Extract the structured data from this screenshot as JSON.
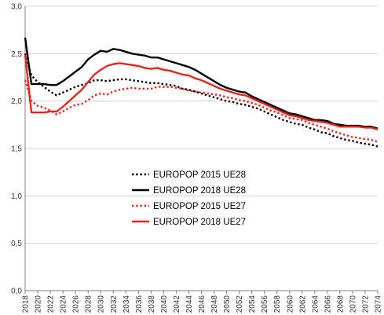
{
  "chart_data": {
    "type": "line",
    "title": "",
    "xlabel": "",
    "ylabel": "",
    "ylim": [
      0,
      3.0
    ],
    "xlim": [
      2018,
      2074
    ],
    "grid": {
      "x": false,
      "y": true
    },
    "legend_position": "center-left",
    "y_ticks": [
      "0,0",
      "0,5",
      "1,0",
      "1,5",
      "2,0",
      "2,5",
      "3,0"
    ],
    "x_ticks": [
      "2018",
      "2020",
      "2022",
      "2024",
      "2026",
      "2028",
      "2030",
      "2032",
      "2034",
      "2036",
      "2038",
      "2040",
      "2042",
      "2044",
      "2046",
      "2048",
      "2050",
      "2052",
      "2054",
      "2056",
      "2058",
      "2060",
      "2062",
      "2064",
      "2066",
      "2068",
      "2070",
      "2072",
      "2074"
    ],
    "series": [
      {
        "name": "EUROPOP 2015 UE28",
        "color": "#000000",
        "style": "dotted",
        "points": [
          [
            2018,
            2.5
          ],
          [
            2019,
            2.27
          ],
          [
            2020,
            2.2
          ],
          [
            2021,
            2.15
          ],
          [
            2022,
            2.1
          ],
          [
            2023,
            2.06
          ],
          [
            2024,
            2.09
          ],
          [
            2025,
            2.12
          ],
          [
            2026,
            2.15
          ],
          [
            2027,
            2.17
          ],
          [
            2028,
            2.19
          ],
          [
            2029,
            2.22
          ],
          [
            2030,
            2.22
          ],
          [
            2031,
            2.21
          ],
          [
            2032,
            2.22
          ],
          [
            2033,
            2.23
          ],
          [
            2034,
            2.23
          ],
          [
            2035,
            2.22
          ],
          [
            2036,
            2.21
          ],
          [
            2037,
            2.2
          ],
          [
            2038,
            2.19
          ],
          [
            2039,
            2.19
          ],
          [
            2040,
            2.18
          ],
          [
            2041,
            2.17
          ],
          [
            2042,
            2.16
          ],
          [
            2043,
            2.13
          ],
          [
            2044,
            2.12
          ],
          [
            2045,
            2.1
          ],
          [
            2046,
            2.08
          ],
          [
            2047,
            2.06
          ],
          [
            2048,
            2.04
          ],
          [
            2049,
            2.02
          ],
          [
            2050,
            2.0
          ],
          [
            2051,
            1.99
          ],
          [
            2052,
            1.97
          ],
          [
            2053,
            1.96
          ],
          [
            2054,
            1.94
          ],
          [
            2055,
            1.92
          ],
          [
            2056,
            1.89
          ],
          [
            2057,
            1.86
          ],
          [
            2058,
            1.83
          ],
          [
            2059,
            1.8
          ],
          [
            2060,
            1.78
          ],
          [
            2061,
            1.76
          ],
          [
            2062,
            1.75
          ],
          [
            2063,
            1.72
          ],
          [
            2064,
            1.7
          ],
          [
            2065,
            1.67
          ],
          [
            2066,
            1.66
          ],
          [
            2067,
            1.63
          ],
          [
            2068,
            1.61
          ],
          [
            2069,
            1.59
          ],
          [
            2070,
            1.58
          ],
          [
            2071,
            1.56
          ],
          [
            2072,
            1.55
          ],
          [
            2073,
            1.54
          ],
          [
            2074,
            1.52
          ]
        ]
      },
      {
        "name": "EUROPOP 2018 UE28",
        "color": "#000000",
        "style": "solid",
        "points": [
          [
            2018,
            2.67
          ],
          [
            2019,
            2.18
          ],
          [
            2020,
            2.18
          ],
          [
            2021,
            2.18
          ],
          [
            2022,
            2.17
          ],
          [
            2023,
            2.17
          ],
          [
            2024,
            2.21
          ],
          [
            2025,
            2.26
          ],
          [
            2026,
            2.31
          ],
          [
            2027,
            2.36
          ],
          [
            2028,
            2.44
          ],
          [
            2029,
            2.49
          ],
          [
            2030,
            2.53
          ],
          [
            2031,
            2.52
          ],
          [
            2032,
            2.55
          ],
          [
            2033,
            2.54
          ],
          [
            2034,
            2.52
          ],
          [
            2035,
            2.5
          ],
          [
            2036,
            2.49
          ],
          [
            2037,
            2.48
          ],
          [
            2038,
            2.46
          ],
          [
            2039,
            2.46
          ],
          [
            2040,
            2.44
          ],
          [
            2041,
            2.42
          ],
          [
            2042,
            2.4
          ],
          [
            2043,
            2.38
          ],
          [
            2044,
            2.36
          ],
          [
            2045,
            2.33
          ],
          [
            2046,
            2.29
          ],
          [
            2047,
            2.25
          ],
          [
            2048,
            2.21
          ],
          [
            2049,
            2.17
          ],
          [
            2050,
            2.14
          ],
          [
            2051,
            2.12
          ],
          [
            2052,
            2.1
          ],
          [
            2053,
            2.09
          ],
          [
            2054,
            2.05
          ],
          [
            2055,
            2.02
          ],
          [
            2056,
            1.99
          ],
          [
            2057,
            1.96
          ],
          [
            2058,
            1.93
          ],
          [
            2059,
            1.9
          ],
          [
            2060,
            1.87
          ],
          [
            2061,
            1.86
          ],
          [
            2062,
            1.84
          ],
          [
            2063,
            1.82
          ],
          [
            2064,
            1.8
          ],
          [
            2065,
            1.8
          ],
          [
            2066,
            1.79
          ],
          [
            2067,
            1.76
          ],
          [
            2068,
            1.75
          ],
          [
            2069,
            1.74
          ],
          [
            2070,
            1.74
          ],
          [
            2071,
            1.74
          ],
          [
            2072,
            1.73
          ],
          [
            2073,
            1.73
          ],
          [
            2074,
            1.71
          ]
        ]
      },
      {
        "name": "EUROPOP 2015 UE27",
        "color": "#e8231b",
        "style": "dotted",
        "points": [
          [
            2018,
            2.22
          ],
          [
            2019,
            2.0
          ],
          [
            2020,
            1.95
          ],
          [
            2021,
            1.93
          ],
          [
            2022,
            1.9
          ],
          [
            2023,
            1.86
          ],
          [
            2024,
            1.89
          ],
          [
            2025,
            1.93
          ],
          [
            2026,
            1.96
          ],
          [
            2027,
            1.97
          ],
          [
            2028,
            2.01
          ],
          [
            2029,
            2.06
          ],
          [
            2030,
            2.08
          ],
          [
            2031,
            2.07
          ],
          [
            2032,
            2.1
          ],
          [
            2033,
            2.12
          ],
          [
            2034,
            2.13
          ],
          [
            2035,
            2.14
          ],
          [
            2036,
            2.13
          ],
          [
            2037,
            2.13
          ],
          [
            2038,
            2.13
          ],
          [
            2039,
            2.15
          ],
          [
            2040,
            2.15
          ],
          [
            2041,
            2.15
          ],
          [
            2042,
            2.14
          ],
          [
            2043,
            2.13
          ],
          [
            2044,
            2.11
          ],
          [
            2045,
            2.1
          ],
          [
            2046,
            2.09
          ],
          [
            2047,
            2.08
          ],
          [
            2048,
            2.07
          ],
          [
            2049,
            2.06
          ],
          [
            2050,
            2.04
          ],
          [
            2051,
            2.03
          ],
          [
            2052,
            2.01
          ],
          [
            2053,
            2.0
          ],
          [
            2054,
            1.98
          ],
          [
            2055,
            1.96
          ],
          [
            2056,
            1.93
          ],
          [
            2057,
            1.9
          ],
          [
            2058,
            1.88
          ],
          [
            2059,
            1.85
          ],
          [
            2060,
            1.82
          ],
          [
            2061,
            1.81
          ],
          [
            2062,
            1.8
          ],
          [
            2063,
            1.77
          ],
          [
            2064,
            1.75
          ],
          [
            2065,
            1.73
          ],
          [
            2066,
            1.71
          ],
          [
            2067,
            1.68
          ],
          [
            2068,
            1.66
          ],
          [
            2069,
            1.64
          ],
          [
            2070,
            1.62
          ],
          [
            2071,
            1.61
          ],
          [
            2072,
            1.6
          ],
          [
            2073,
            1.59
          ],
          [
            2074,
            1.57
          ]
        ]
      },
      {
        "name": "EUROPOP 2018 UE27",
        "color": "#e8231b",
        "style": "solid",
        "points": [
          [
            2018,
            2.49
          ],
          [
            2019,
            1.88
          ],
          [
            2020,
            1.88
          ],
          [
            2021,
            1.88
          ],
          [
            2022,
            1.89
          ],
          [
            2023,
            1.89
          ],
          [
            2024,
            1.94
          ],
          [
            2025,
            2.0
          ],
          [
            2026,
            2.06
          ],
          [
            2027,
            2.12
          ],
          [
            2028,
            2.2
          ],
          [
            2029,
            2.28
          ],
          [
            2030,
            2.33
          ],
          [
            2031,
            2.37
          ],
          [
            2032,
            2.39
          ],
          [
            2033,
            2.4
          ],
          [
            2034,
            2.39
          ],
          [
            2035,
            2.38
          ],
          [
            2036,
            2.37
          ],
          [
            2037,
            2.35
          ],
          [
            2038,
            2.34
          ],
          [
            2039,
            2.35
          ],
          [
            2040,
            2.33
          ],
          [
            2041,
            2.32
          ],
          [
            2042,
            2.3
          ],
          [
            2043,
            2.28
          ],
          [
            2044,
            2.27
          ],
          [
            2045,
            2.24
          ],
          [
            2046,
            2.22
          ],
          [
            2047,
            2.19
          ],
          [
            2048,
            2.16
          ],
          [
            2049,
            2.13
          ],
          [
            2050,
            2.11
          ],
          [
            2051,
            2.09
          ],
          [
            2052,
            2.07
          ],
          [
            2053,
            2.06
          ],
          [
            2054,
            2.03
          ],
          [
            2055,
            2.0
          ],
          [
            2056,
            1.97
          ],
          [
            2057,
            1.94
          ],
          [
            2058,
            1.91
          ],
          [
            2059,
            1.88
          ],
          [
            2060,
            1.85
          ],
          [
            2061,
            1.84
          ],
          [
            2062,
            1.82
          ],
          [
            2063,
            1.8
          ],
          [
            2064,
            1.79
          ],
          [
            2065,
            1.78
          ],
          [
            2066,
            1.77
          ],
          [
            2067,
            1.75
          ],
          [
            2068,
            1.73
          ],
          [
            2069,
            1.73
          ],
          [
            2070,
            1.73
          ],
          [
            2071,
            1.73
          ],
          [
            2072,
            1.72
          ],
          [
            2073,
            1.72
          ],
          [
            2074,
            1.7
          ]
        ]
      }
    ]
  }
}
